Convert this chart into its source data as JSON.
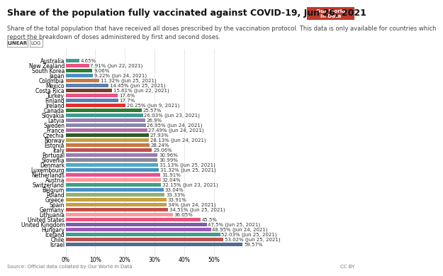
{
  "title": "Share of the population fully vaccinated against COVID-19, Jun 26, 2021",
  "subtitle": "Share of the total population that have received all doses prescribed by the vaccination protocol. This data is only available for countries which\nreport the breakdown of doses administered by first and second doses.",
  "source": "Source: Official data collated by Our World in Data",
  "countries": [
    "Australia",
    "New Zealand",
    "South Korea",
    "Japan",
    "Colombia",
    "Mexico",
    "Costa Rica",
    "Turkey",
    "Finland",
    "Ireland",
    "Canada",
    "Slovakia",
    "Latvia",
    "Sweden",
    "France",
    "Czechia",
    "Norway",
    "Estonia",
    "Italy",
    "Portugal",
    "Slovenia",
    "Denmark",
    "Luxembourg",
    "Netherlands",
    "Austria",
    "Switzerland",
    "Belgium",
    "Poland",
    "Greece",
    "Spain",
    "Germany",
    "Lithuania",
    "United States",
    "United Kingdom",
    "Hungary",
    "Iceland",
    "Chile",
    "Israel"
  ],
  "values": [
    4.65,
    7.91,
    9.06,
    9.22,
    11.32,
    14.45,
    15.61,
    17.6,
    17.7,
    20.25,
    25.57,
    26.03,
    26.9,
    26.95,
    27.49,
    27.93,
    28.13,
    28.24,
    29.06,
    30.96,
    30.99,
    31.13,
    31.32,
    31.91,
    32.04,
    32.15,
    33.04,
    33.33,
    33.91,
    34.0,
    34.51,
    36.05,
    45.5,
    47.5,
    48.95,
    52.03,
    53.02,
    59.57
  ],
  "labels": [
    "4.65%",
    "7.91% (Jun 22, 2021)",
    "9.06%",
    "9.22% (Jun 24, 2021)",
    "11.32% (Jun 25, 2021)",
    "14.45% (Jun 25, 2021)",
    "15.61% (Jun 22, 2021)",
    "17.6%",
    "17.7%",
    "20.25% (Jun 9, 2021)",
    "25.57%",
    "26.03% (Jun 23, 2021)",
    "26.9%",
    "26.95% (Jun 24, 2021)",
    "27.49% (Jun 24, 2021)",
    "27.93%",
    "28.13% (Jun 24, 2021)",
    "28.24%",
    "29.06%",
    "30.96%",
    "30.99%",
    "31.13% (Jun 25, 2021)",
    "31.32% (Jun 25, 2021)",
    "31.91%",
    "32.04%",
    "32.15% (Jun 23, 2021)",
    "33.04%",
    "33.33%",
    "33.91%",
    "34% (Jun 24, 2021)",
    "34.51% (Jun 25, 2021)",
    "36.05%",
    "45.5%",
    "47.5% (Jun 25, 2021)",
    "48.95% (Jun 24, 2021)",
    "52.03% (Jun 25, 2021)",
    "53.02% (Jun 25, 2021)",
    "59.57%"
  ],
  "colors": [
    "#3d9e8c",
    "#e75480",
    "#2e7d32",
    "#4a90c4",
    "#c87941",
    "#5b7fb5",
    "#7b3f2e",
    "#e75480",
    "#5b7fb5",
    "#e03030",
    "#2e7d32",
    "#3d9e8c",
    "#9b7bb5",
    "#8888aa",
    "#b56daa",
    "#2e5c2e",
    "#c8a040",
    "#c87941",
    "#c0504d",
    "#9b7bb5",
    "#888899",
    "#4bacc6",
    "#4a90c4",
    "#e85090",
    "#ff9999",
    "#3d9e8c",
    "#4a90c4",
    "#8db374",
    "#c8a040",
    "#c8a040",
    "#c0504d",
    "#ff9999",
    "#e75480",
    "#7b5ea7",
    "#9b59b6",
    "#3d9e8c",
    "#c0504d",
    "#4f6d8f"
  ],
  "background_color": "#ffffff",
  "xlim": [
    0,
    62
  ],
  "xtick_positions": [
    0,
    10,
    20,
    30,
    40,
    50
  ],
  "xtick_labels": [
    "0%",
    "10%",
    "20%",
    "30%",
    "40%",
    "50%"
  ],
  "bar_height": 0.78,
  "title_fontsize": 9,
  "subtitle_fontsize": 6,
  "label_fontsize": 5,
  "tick_fontsize": 5.5,
  "source_fontsize": 5
}
